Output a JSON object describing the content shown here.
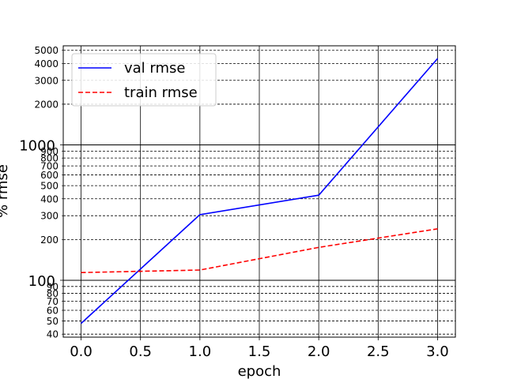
{
  "chart_data": {
    "type": "line",
    "xlabel": "epoch",
    "ylabel": "% rmse",
    "yscale": "log",
    "xlim": [
      -0.15,
      3.15
    ],
    "ylim": [
      38,
      5400
    ],
    "grid": true,
    "legend_position": "top-left",
    "x": [
      0.0,
      1.0,
      2.0,
      3.0
    ],
    "x_ticks": [
      0.0,
      0.5,
      1.0,
      1.5,
      2.0,
      2.5,
      3.0
    ],
    "x_tick_labels": [
      "0.0",
      "0.5",
      "1.0",
      "1.5",
      "2.0",
      "2.5",
      "3.0"
    ],
    "y_major_ticks": [
      100,
      1000
    ],
    "y_major_tick_labels": [
      "100",
      "1000"
    ],
    "y_minor_ticks": [
      40,
      50,
      60,
      70,
      80,
      90,
      200,
      300,
      400,
      500,
      600,
      700,
      800,
      900,
      2000,
      3000,
      4000,
      5000
    ],
    "y_minor_tick_labels": [
      "40",
      "50",
      "60",
      "70",
      "80",
      "90",
      "200",
      "300",
      "400",
      "500",
      "600",
      "700",
      "800",
      "900",
      "2000",
      "3000",
      "4000",
      "5000"
    ],
    "series": [
      {
        "name": "val rmse",
        "values": [
          48,
          305,
          425,
          4350
        ],
        "color": "#0000ff",
        "style": "solid"
      },
      {
        "name": "train rmse",
        "values": [
          114,
          119,
          175,
          240
        ],
        "color": "#ff0000",
        "style": "dashed"
      }
    ]
  }
}
